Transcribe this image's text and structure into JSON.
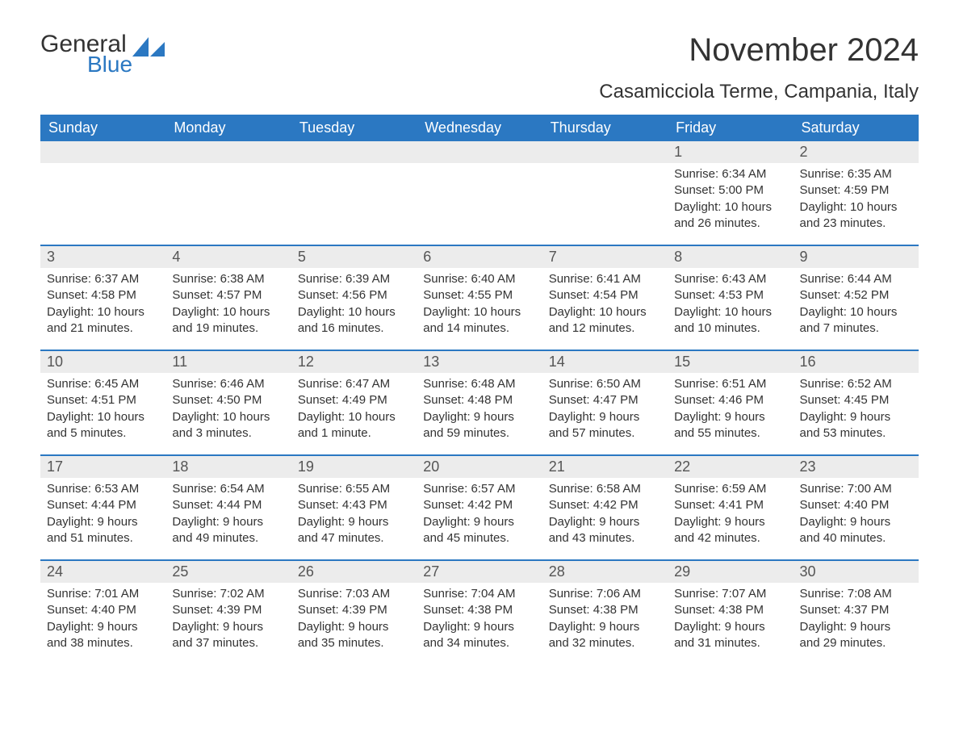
{
  "logo": {
    "word1": "General",
    "word2": "Blue"
  },
  "title": "November 2024",
  "location": "Casamicciola Terme, Campania, Italy",
  "colors": {
    "header_bg": "#2b78c2",
    "header_text": "#ffffff",
    "daynum_bg": "#ececec",
    "border": "#2b78c2",
    "text": "#333333",
    "logo_blue": "#2b78c2"
  },
  "weekdays": [
    "Sunday",
    "Monday",
    "Tuesday",
    "Wednesday",
    "Thursday",
    "Friday",
    "Saturday"
  ],
  "weeks": [
    [
      {
        "blank": true
      },
      {
        "blank": true
      },
      {
        "blank": true
      },
      {
        "blank": true
      },
      {
        "blank": true
      },
      {
        "day": "1",
        "sunrise": "Sunrise: 6:34 AM",
        "sunset": "Sunset: 5:00 PM",
        "daylight1": "Daylight: 10 hours",
        "daylight2": "and 26 minutes."
      },
      {
        "day": "2",
        "sunrise": "Sunrise: 6:35 AM",
        "sunset": "Sunset: 4:59 PM",
        "daylight1": "Daylight: 10 hours",
        "daylight2": "and 23 minutes."
      }
    ],
    [
      {
        "day": "3",
        "sunrise": "Sunrise: 6:37 AM",
        "sunset": "Sunset: 4:58 PM",
        "daylight1": "Daylight: 10 hours",
        "daylight2": "and 21 minutes."
      },
      {
        "day": "4",
        "sunrise": "Sunrise: 6:38 AM",
        "sunset": "Sunset: 4:57 PM",
        "daylight1": "Daylight: 10 hours",
        "daylight2": "and 19 minutes."
      },
      {
        "day": "5",
        "sunrise": "Sunrise: 6:39 AM",
        "sunset": "Sunset: 4:56 PM",
        "daylight1": "Daylight: 10 hours",
        "daylight2": "and 16 minutes."
      },
      {
        "day": "6",
        "sunrise": "Sunrise: 6:40 AM",
        "sunset": "Sunset: 4:55 PM",
        "daylight1": "Daylight: 10 hours",
        "daylight2": "and 14 minutes."
      },
      {
        "day": "7",
        "sunrise": "Sunrise: 6:41 AM",
        "sunset": "Sunset: 4:54 PM",
        "daylight1": "Daylight: 10 hours",
        "daylight2": "and 12 minutes."
      },
      {
        "day": "8",
        "sunrise": "Sunrise: 6:43 AM",
        "sunset": "Sunset: 4:53 PM",
        "daylight1": "Daylight: 10 hours",
        "daylight2": "and 10 minutes."
      },
      {
        "day": "9",
        "sunrise": "Sunrise: 6:44 AM",
        "sunset": "Sunset: 4:52 PM",
        "daylight1": "Daylight: 10 hours",
        "daylight2": "and 7 minutes."
      }
    ],
    [
      {
        "day": "10",
        "sunrise": "Sunrise: 6:45 AM",
        "sunset": "Sunset: 4:51 PM",
        "daylight1": "Daylight: 10 hours",
        "daylight2": "and 5 minutes."
      },
      {
        "day": "11",
        "sunrise": "Sunrise: 6:46 AM",
        "sunset": "Sunset: 4:50 PM",
        "daylight1": "Daylight: 10 hours",
        "daylight2": "and 3 minutes."
      },
      {
        "day": "12",
        "sunrise": "Sunrise: 6:47 AM",
        "sunset": "Sunset: 4:49 PM",
        "daylight1": "Daylight: 10 hours",
        "daylight2": "and 1 minute."
      },
      {
        "day": "13",
        "sunrise": "Sunrise: 6:48 AM",
        "sunset": "Sunset: 4:48 PM",
        "daylight1": "Daylight: 9 hours",
        "daylight2": "and 59 minutes."
      },
      {
        "day": "14",
        "sunrise": "Sunrise: 6:50 AM",
        "sunset": "Sunset: 4:47 PM",
        "daylight1": "Daylight: 9 hours",
        "daylight2": "and 57 minutes."
      },
      {
        "day": "15",
        "sunrise": "Sunrise: 6:51 AM",
        "sunset": "Sunset: 4:46 PM",
        "daylight1": "Daylight: 9 hours",
        "daylight2": "and 55 minutes."
      },
      {
        "day": "16",
        "sunrise": "Sunrise: 6:52 AM",
        "sunset": "Sunset: 4:45 PM",
        "daylight1": "Daylight: 9 hours",
        "daylight2": "and 53 minutes."
      }
    ],
    [
      {
        "day": "17",
        "sunrise": "Sunrise: 6:53 AM",
        "sunset": "Sunset: 4:44 PM",
        "daylight1": "Daylight: 9 hours",
        "daylight2": "and 51 minutes."
      },
      {
        "day": "18",
        "sunrise": "Sunrise: 6:54 AM",
        "sunset": "Sunset: 4:44 PM",
        "daylight1": "Daylight: 9 hours",
        "daylight2": "and 49 minutes."
      },
      {
        "day": "19",
        "sunrise": "Sunrise: 6:55 AM",
        "sunset": "Sunset: 4:43 PM",
        "daylight1": "Daylight: 9 hours",
        "daylight2": "and 47 minutes."
      },
      {
        "day": "20",
        "sunrise": "Sunrise: 6:57 AM",
        "sunset": "Sunset: 4:42 PM",
        "daylight1": "Daylight: 9 hours",
        "daylight2": "and 45 minutes."
      },
      {
        "day": "21",
        "sunrise": "Sunrise: 6:58 AM",
        "sunset": "Sunset: 4:42 PM",
        "daylight1": "Daylight: 9 hours",
        "daylight2": "and 43 minutes."
      },
      {
        "day": "22",
        "sunrise": "Sunrise: 6:59 AM",
        "sunset": "Sunset: 4:41 PM",
        "daylight1": "Daylight: 9 hours",
        "daylight2": "and 42 minutes."
      },
      {
        "day": "23",
        "sunrise": "Sunrise: 7:00 AM",
        "sunset": "Sunset: 4:40 PM",
        "daylight1": "Daylight: 9 hours",
        "daylight2": "and 40 minutes."
      }
    ],
    [
      {
        "day": "24",
        "sunrise": "Sunrise: 7:01 AM",
        "sunset": "Sunset: 4:40 PM",
        "daylight1": "Daylight: 9 hours",
        "daylight2": "and 38 minutes."
      },
      {
        "day": "25",
        "sunrise": "Sunrise: 7:02 AM",
        "sunset": "Sunset: 4:39 PM",
        "daylight1": "Daylight: 9 hours",
        "daylight2": "and 37 minutes."
      },
      {
        "day": "26",
        "sunrise": "Sunrise: 7:03 AM",
        "sunset": "Sunset: 4:39 PM",
        "daylight1": "Daylight: 9 hours",
        "daylight2": "and 35 minutes."
      },
      {
        "day": "27",
        "sunrise": "Sunrise: 7:04 AM",
        "sunset": "Sunset: 4:38 PM",
        "daylight1": "Daylight: 9 hours",
        "daylight2": "and 34 minutes."
      },
      {
        "day": "28",
        "sunrise": "Sunrise: 7:06 AM",
        "sunset": "Sunset: 4:38 PM",
        "daylight1": "Daylight: 9 hours",
        "daylight2": "and 32 minutes."
      },
      {
        "day": "29",
        "sunrise": "Sunrise: 7:07 AM",
        "sunset": "Sunset: 4:38 PM",
        "daylight1": "Daylight: 9 hours",
        "daylight2": "and 31 minutes."
      },
      {
        "day": "30",
        "sunrise": "Sunrise: 7:08 AM",
        "sunset": "Sunset: 4:37 PM",
        "daylight1": "Daylight: 9 hours",
        "daylight2": "and 29 minutes."
      }
    ]
  ]
}
